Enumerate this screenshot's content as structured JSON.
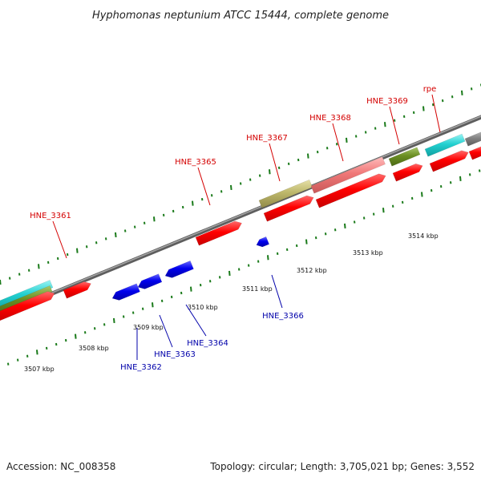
{
  "title": "Hyphomonas neptunium ATCC 15444, complete genome",
  "footer": {
    "accession": "Accession: NC_008358",
    "summary": "Topology: circular; Length: 3,705,021 bp; Genes: 3,552"
  },
  "colors": {
    "forward_gene": "#ff0000",
    "reverse_gene": "#0000ee",
    "pseudo_gene": "#f07878",
    "cyan_track": "#22d0d0",
    "olive_track": "#6b8e23",
    "khaki_track": "#bdb76b",
    "backbone": "#808080",
    "tick": "#1a7a1a",
    "label_forward": "#d40000",
    "label_reverse": "#0000aa"
  },
  "kbp_labels": [
    "3507 kbp",
    "3508 kbp",
    "3509 kbp",
    "3510 kbp",
    "3511 kbp",
    "3512 kbp",
    "3513 kbp",
    "3514 kbp"
  ],
  "forward_gene_labels": [
    "HNE_3361",
    "HNE_3365",
    "HNE_3367",
    "HNE_3368",
    "HNE_3369",
    "rpe"
  ],
  "reverse_gene_labels": [
    "HNE_3362",
    "HNE_3363",
    "HNE_3364",
    "HNE_3366"
  ]
}
